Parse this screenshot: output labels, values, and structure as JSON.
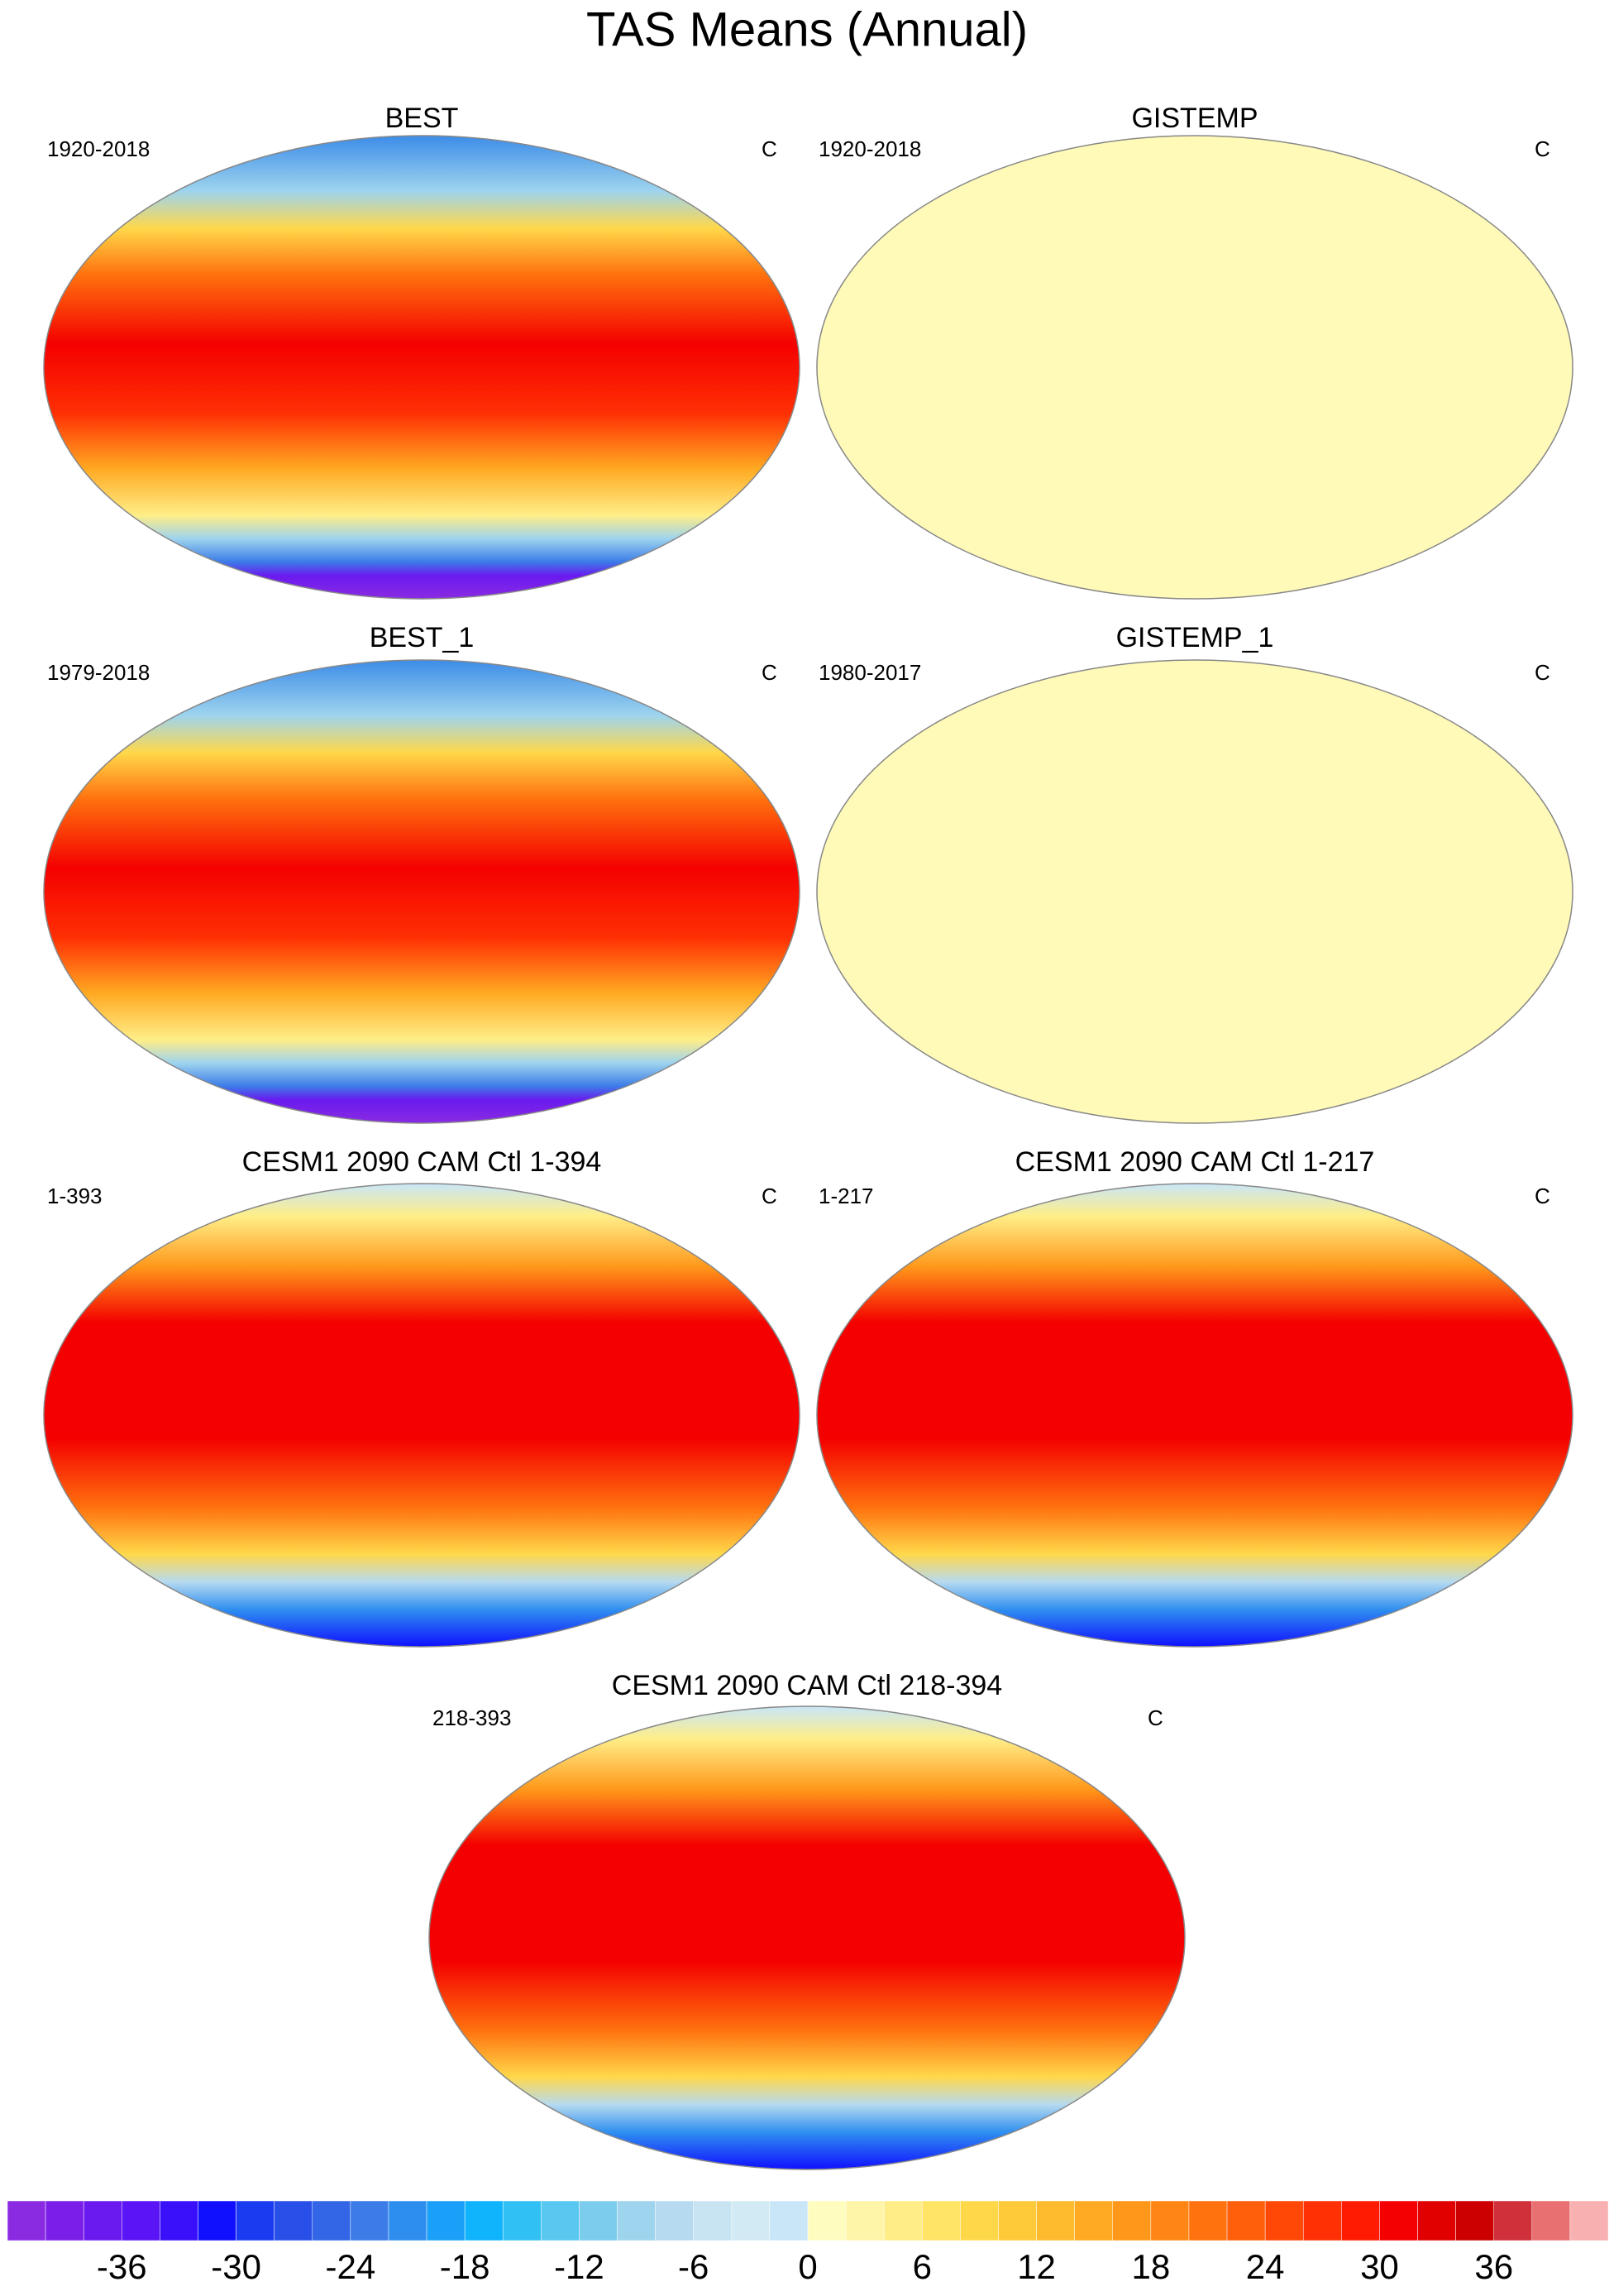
{
  "title": "TAS Means (Annual)",
  "panels": [
    {
      "title": "BEST",
      "period": "1920-2018",
      "units": "C"
    },
    {
      "title": "GISTEMP",
      "period": "1920-2018",
      "units": "C"
    },
    {
      "title": "BEST_1",
      "period": "1979-2018",
      "units": "C"
    },
    {
      "title": "GISTEMP_1",
      "period": "1980-2017",
      "units": "C"
    },
    {
      "title": "CESM1 2090 CAM Ctl 1-394",
      "period": "1-393",
      "units": "C"
    },
    {
      "title": "CESM1 2090 CAM Ctl 1-217",
      "period": "1-217",
      "units": "C"
    },
    {
      "title": "CESM1 2090 CAM Ctl 218-394",
      "period": "218-393",
      "units": "C"
    }
  ],
  "colorbar": {
    "range": [
      -42,
      42
    ],
    "ticks": [
      -36,
      -30,
      -24,
      -18,
      -12,
      -6,
      0,
      6,
      12,
      18,
      24,
      30,
      36
    ],
    "colors": [
      "#8a2be2",
      "#7b1fe8",
      "#6a1aef",
      "#5a14f5",
      "#3a10fa",
      "#1010ff",
      "#1a3cf0",
      "#2850e8",
      "#3266e6",
      "#3c7ce8",
      "#2e8ef0",
      "#1aa0f8",
      "#10b4fc",
      "#30c0f4",
      "#58c8f0",
      "#7cccee",
      "#9ed4ee",
      "#b6daf0",
      "#c8e4f2",
      "#d2eaf4",
      "#c8e6f8",
      "#fffcc0",
      "#fff5a8",
      "#ffee88",
      "#ffe466",
      "#ffd84a",
      "#ffca3a",
      "#ffbb2e",
      "#ffaa22",
      "#ff981a",
      "#ff8614",
      "#ff720e",
      "#ff5e0a",
      "#ff4806",
      "#ff3004",
      "#ff1a02",
      "#f40000",
      "#e00000",
      "#cc0000",
      "#d0303a",
      "#e87070",
      "#f8b0b0"
    ]
  }
}
